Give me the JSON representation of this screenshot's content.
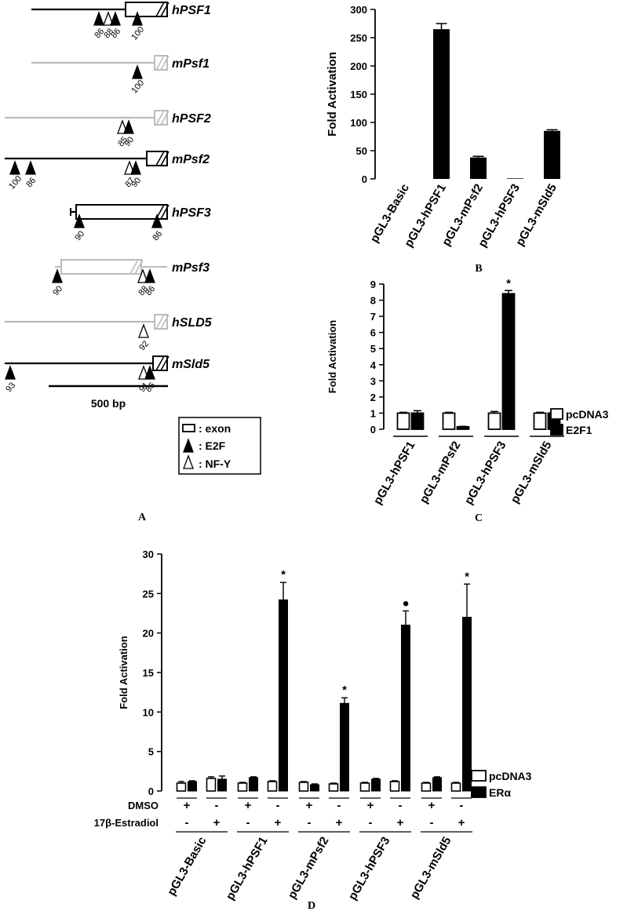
{
  "panel_a": {
    "letter": "A",
    "rows": [
      {
        "gene": "hPSF1",
        "color": "#000000",
        "motifs": [
          {
            "type": "E2F",
            "label": "86"
          },
          {
            "type": "NF-Y",
            "label": "88"
          },
          {
            "type": "E2F",
            "label": "86"
          },
          {
            "type": "E2F",
            "label": "100"
          }
        ]
      },
      {
        "gene": "mPsf1",
        "color": "#bbbbbb",
        "motifs": [
          {
            "type": "E2F",
            "label": "100"
          }
        ]
      },
      {
        "gene": "hPSF2",
        "color": "#bbbbbb",
        "motifs": [
          {
            "type": "NF-Y",
            "label": "85"
          },
          {
            "type": "E2F",
            "label": "90"
          }
        ]
      },
      {
        "gene": "mPsf2",
        "color": "#000000",
        "motifs": [
          {
            "type": "E2F",
            "label": "100"
          },
          {
            "type": "E2F",
            "label": "86"
          },
          {
            "type": "NF-Y",
            "label": "87"
          },
          {
            "type": "E2F",
            "label": "90"
          }
        ]
      },
      {
        "gene": "hPSF3",
        "color": "#000000",
        "motifs": [
          {
            "type": "E2F",
            "label": "90"
          },
          {
            "type": "E2F",
            "label": "86"
          }
        ]
      },
      {
        "gene": "mPsf3",
        "color": "#bbbbbb",
        "motifs": [
          {
            "type": "E2F",
            "label": "90"
          },
          {
            "type": "NF-Y",
            "label": "88"
          },
          {
            "type": "E2F",
            "label": "86"
          }
        ]
      },
      {
        "gene": "hSLD5",
        "color": "#bbbbbb",
        "motifs": [
          {
            "type": "NF-Y",
            "label": "92"
          }
        ]
      },
      {
        "gene": "mSld5",
        "color": "#000000",
        "motifs": [
          {
            "type": "E2F",
            "label": "93"
          },
          {
            "type": "NF-Y",
            "label": "91"
          },
          {
            "type": "E2F",
            "label": "86"
          }
        ]
      }
    ],
    "scale_label": "500 bp",
    "legend": [
      ": exon",
      ": E2F",
      ": NF-Y"
    ]
  },
  "chart_data": [
    {
      "panel": "B",
      "type": "bar",
      "ylabel": "Fold Activation",
      "ylim": [
        0,
        300
      ],
      "yticks": [
        0,
        50,
        100,
        150,
        200,
        250,
        300
      ],
      "categories": [
        "pGL3-Basic",
        "pGL3-hPSF1",
        "pGL3-mPsf2",
        "pGL3-hPSF3",
        "pGL3-mSld5"
      ],
      "values": [
        0,
        265,
        38,
        1,
        85
      ],
      "errors": [
        0,
        10,
        2,
        0,
        2
      ],
      "bar_color": "#000000"
    },
    {
      "panel": "C",
      "type": "bar",
      "ylabel": "Fold Activation",
      "ylim": [
        0,
        9
      ],
      "yticks": [
        0,
        1,
        2,
        3,
        4,
        5,
        6,
        7,
        8,
        9
      ],
      "categories": [
        "pGL3-hPSF1",
        "pGL3-mPsf2",
        "pGL3-hPSF3",
        "pGL3-mSld5"
      ],
      "series": [
        {
          "name": "pcDNA3",
          "values": [
            1.0,
            1.0,
            1.0,
            1.0
          ],
          "errors": [
            0.05,
            0.05,
            0.1,
            0.05
          ],
          "color": "#ffffff"
        },
        {
          "name": "E2F1",
          "values": [
            1.0,
            0.15,
            8.4,
            1.0
          ],
          "errors": [
            0.15,
            0.03,
            0.2,
            0.03
          ],
          "color": "#000000"
        }
      ],
      "annotations": [
        {
          "category": "pGL3-hPSF3",
          "text": "*"
        }
      ]
    },
    {
      "panel": "D",
      "type": "bar",
      "ylabel": "Fold Activation",
      "ylim": [
        0,
        30
      ],
      "yticks": [
        0,
        5,
        10,
        15,
        20,
        25,
        30
      ],
      "condition_labels": [
        "DMSO",
        "17β-Estradiol"
      ],
      "groups": [
        {
          "name": "pGL3-Basic",
          "conditions": [
            {
              "dmso": "+",
              "estradiol": "-",
              "pcDNA3": 1.0,
              "pcDNA3_err": 0.2,
              "ER": 1.2,
              "ER_err": 0.1,
              "mark": ""
            },
            {
              "dmso": "-",
              "estradiol": "+",
              "pcDNA3": 1.6,
              "pcDNA3_err": 0.2,
              "ER": 1.5,
              "ER_err": 0.4,
              "mark": ""
            }
          ]
        },
        {
          "name": "pGL3-hPSF1",
          "conditions": [
            {
              "dmso": "+",
              "estradiol": "-",
              "pcDNA3": 1.0,
              "pcDNA3_err": 0.1,
              "ER": 1.7,
              "ER_err": 0.1,
              "mark": ""
            },
            {
              "dmso": "-",
              "estradiol": "+",
              "pcDNA3": 1.2,
              "pcDNA3_err": 0.1,
              "ER": 24.2,
              "ER_err": 2.2,
              "mark": "*"
            }
          ]
        },
        {
          "name": "pGL3-mPsf2",
          "conditions": [
            {
              "dmso": "+",
              "estradiol": "-",
              "pcDNA3": 1.1,
              "pcDNA3_err": 0.1,
              "ER": 0.8,
              "ER_err": 0.1,
              "mark": ""
            },
            {
              "dmso": "-",
              "estradiol": "+",
              "pcDNA3": 0.9,
              "pcDNA3_err": 0.1,
              "ER": 11.1,
              "ER_err": 0.7,
              "mark": "*"
            }
          ]
        },
        {
          "name": "pGL3-hPSF3",
          "conditions": [
            {
              "dmso": "+",
              "estradiol": "-",
              "pcDNA3": 1.0,
              "pcDNA3_err": 0.1,
              "ER": 1.5,
              "ER_err": 0.1,
              "mark": ""
            },
            {
              "dmso": "-",
              "estradiol": "+",
              "pcDNA3": 1.2,
              "pcDNA3_err": 0.1,
              "ER": 21.0,
              "ER_err": 1.8,
              "mark": "●"
            }
          ]
        },
        {
          "name": "pGL3-mSld5",
          "conditions": [
            {
              "dmso": "+",
              "estradiol": "-",
              "pcDNA3": 1.0,
              "pcDNA3_err": 0.1,
              "ER": 1.7,
              "ER_err": 0.1,
              "mark": ""
            },
            {
              "dmso": "-",
              "estradiol": "+",
              "pcDNA3": 1.0,
              "pcDNA3_err": 0.1,
              "ER": 22.0,
              "ER_err": 4.2,
              "mark": "*"
            }
          ]
        }
      ],
      "series": [
        {
          "name": "pcDNA3",
          "color": "#ffffff"
        },
        {
          "name": "ERα",
          "color": "#000000"
        }
      ]
    }
  ]
}
